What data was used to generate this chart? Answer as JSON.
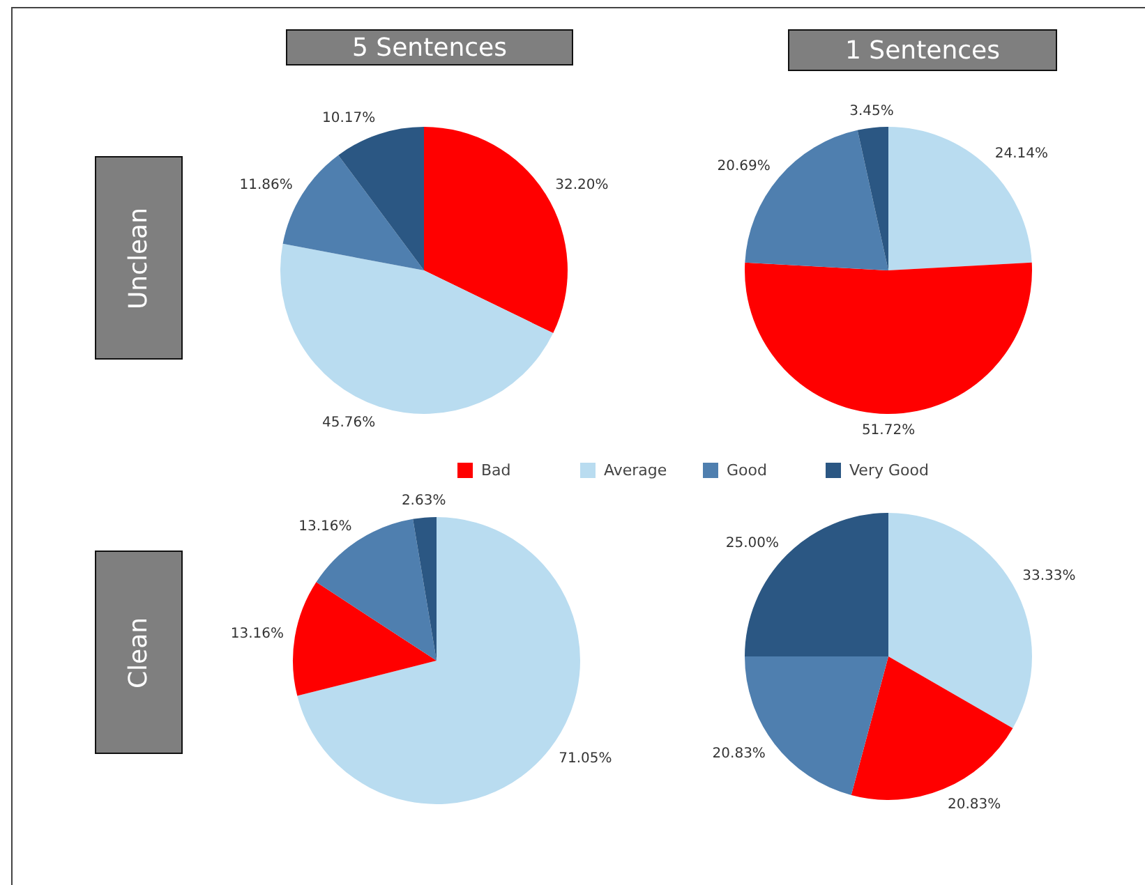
{
  "chart_data": [
    {
      "type": "pie",
      "title": "5 Sentences",
      "ylabel": "Unclean",
      "legend": "bottom",
      "categories": [
        "Bad",
        "Average",
        "Good",
        "Very Good"
      ],
      "values": [
        32.2,
        45.76,
        11.86,
        10.17
      ],
      "colors": [
        "#ff0000",
        "#b9dcf0",
        "#4f7faf",
        "#2b5783"
      ],
      "value_labels": [
        "32.20%",
        "45.76%",
        "11.86%",
        "10.17%"
      ]
    },
    {
      "type": "pie",
      "title": "1 Sentences",
      "categories": [
        null,
        null,
        null,
        null
      ],
      "values": [
        24.14,
        51.72,
        20.69,
        3.45
      ],
      "colors": [
        "#b9dcf0",
        "#ff0000",
        "#4f7faf",
        "#2b5783"
      ],
      "value_labels": [
        "24.14%",
        "51.72%",
        "20.69%",
        "3.45%"
      ]
    },
    {
      "type": "pie",
      "ylabel": "Clean",
      "categories": [
        null,
        null,
        null,
        null
      ],
      "values": [
        71.05,
        13.16,
        13.16,
        2.63
      ],
      "colors": [
        "#b9dcf0",
        "#ff0000",
        "#4f7faf",
        "#2b5783"
      ],
      "value_labels": [
        "71.05%",
        "13.16%",
        "13.16%",
        "2.63%"
      ]
    },
    {
      "type": "pie",
      "categories": [
        null,
        null,
        null,
        null
      ],
      "values": [
        33.33,
        20.83,
        20.83,
        25.0
      ],
      "colors": [
        "#b9dcf0",
        "#ff0000",
        "#4f7faf",
        "#2b5783"
      ],
      "value_labels": [
        "33.33%",
        "20.83%",
        "20.83%",
        "25.00%"
      ]
    }
  ]
}
